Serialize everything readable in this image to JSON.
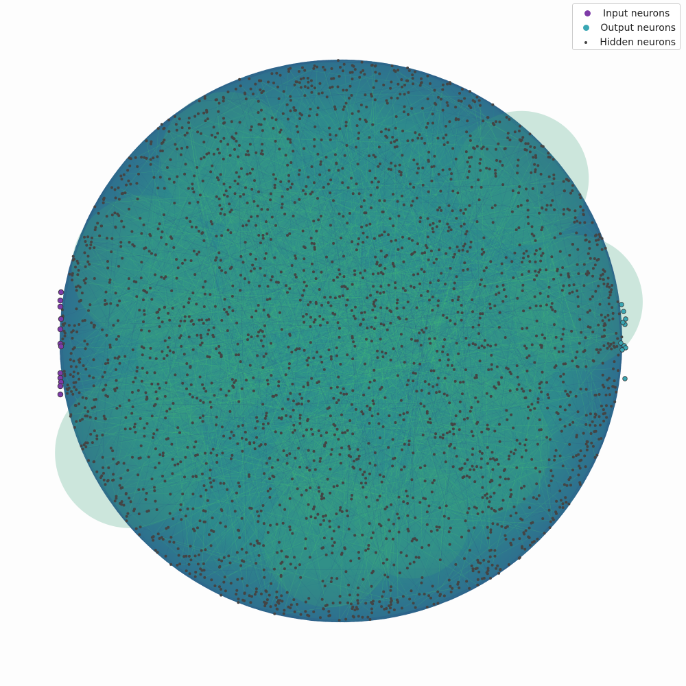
{
  "legend": {
    "placement": "top-right",
    "entries": [
      {
        "label": "Input neurons",
        "color": "#7e3ba8",
        "marker": "large-dot"
      },
      {
        "label": "Output neurons",
        "color": "#3aa7b4",
        "marker": "large-dot"
      },
      {
        "label": "Hidden neurons",
        "color": "#444444",
        "marker": "small-dot"
      }
    ]
  },
  "network": {
    "layout": "circular",
    "input_count": 12,
    "output_count": 10,
    "edge_color_low": "#2e5f8a",
    "edge_color_high": "#46c871",
    "edge_fill": "#2f8f8c",
    "hidden_color": "#444444"
  }
}
